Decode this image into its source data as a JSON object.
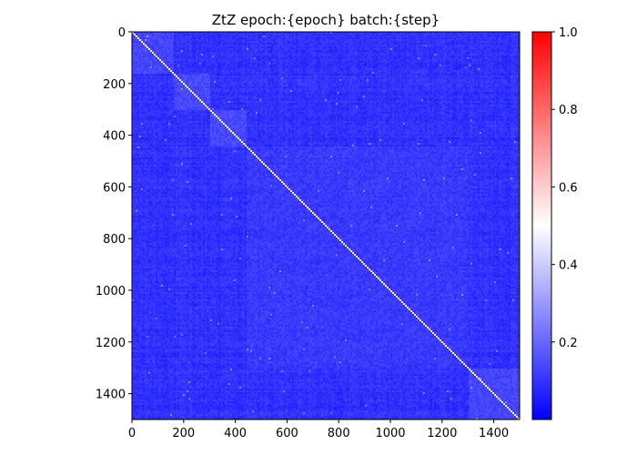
{
  "chart_data": {
    "type": "heatmap",
    "title": "ZtZ epoch:{epoch} batch:{step}",
    "xlabel": "",
    "ylabel": "",
    "x_range": [
      0,
      1500
    ],
    "y_range": [
      0,
      1500
    ],
    "y_axis_inverted": true,
    "x_ticks": [
      0,
      200,
      400,
      600,
      800,
      1000,
      1200,
      1400
    ],
    "y_ticks": [
      0,
      200,
      400,
      600,
      800,
      1000,
      1200,
      1400
    ],
    "colormap": "bwr",
    "colormap_colors": [
      "#0000ff",
      "#ffffff",
      "#ff0000"
    ],
    "color_range": [
      0.0,
      1.0
    ],
    "colorbar_ticks": [
      0.2,
      0.4,
      0.6,
      0.8,
      1.0
    ],
    "colorbar_tick_labels": [
      "0.2",
      "0.4",
      "0.6",
      "0.8",
      "1.0"
    ],
    "typical_off_diagonal_value": 0.05,
    "diagonal_value": 0.5,
    "block_structure": [
      {
        "start": 0,
        "end": 160,
        "mean_value": 0.12
      },
      {
        "start": 160,
        "end": 300,
        "mean_value": 0.13
      },
      {
        "start": 300,
        "end": 440,
        "mean_value": 0.13
      },
      {
        "start": 440,
        "end": 1300,
        "mean_value": 0.08
      },
      {
        "start": 1300,
        "end": 1500,
        "mean_value": 0.12
      }
    ]
  }
}
